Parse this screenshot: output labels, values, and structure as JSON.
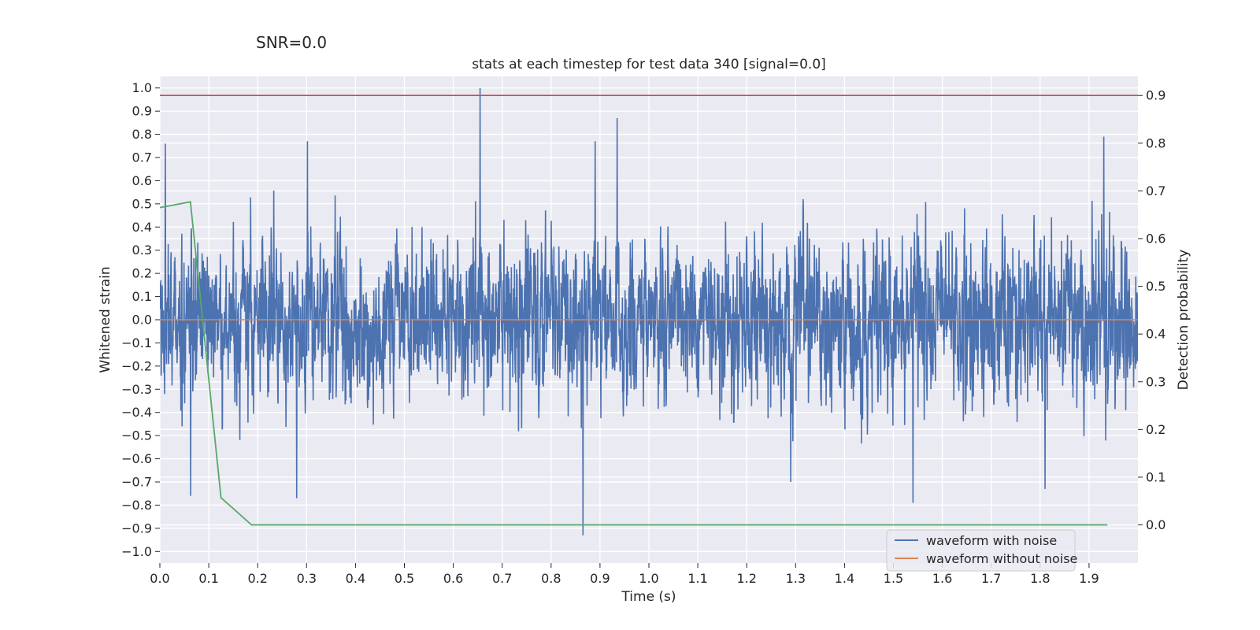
{
  "suptitle": "SNR=0.0",
  "chart_data": {
    "type": "line",
    "title": "stats at each timestep for test data 340 [signal=0.0]",
    "xlabel": "Time (s)",
    "ylabel": "Whitened strain",
    "y2label": "Detection probability",
    "xlim": [
      0.0,
      2.0
    ],
    "ylim": [
      -1.05,
      1.05
    ],
    "y2lim": [
      -0.08,
      0.94
    ],
    "xticks": [
      "0.0",
      "0.1",
      "0.2",
      "0.3",
      "0.4",
      "0.5",
      "0.6",
      "0.7",
      "0.8",
      "0.9",
      "1.0",
      "1.1",
      "1.2",
      "1.3",
      "1.4",
      "1.5",
      "1.6",
      "1.7",
      "1.8",
      "1.9"
    ],
    "yticks": [
      "1.0",
      "0.9",
      "0.8",
      "0.7",
      "0.6",
      "0.5",
      "0.4",
      "0.3",
      "0.2",
      "0.1",
      "0.0",
      "−0.1",
      "−0.2",
      "−0.3",
      "−0.4",
      "−0.5",
      "−0.6",
      "−0.7",
      "−0.8",
      "−0.9",
      "−1.0"
    ],
    "y2ticks": [
      "0.9",
      "0.8",
      "0.7",
      "0.6",
      "0.5",
      "0.4",
      "0.3",
      "0.2",
      "0.1",
      "0.0"
    ],
    "grid": true,
    "legend_position": "lower right",
    "threshold": {
      "value": 0.9,
      "axis": "right",
      "color": "#c44e52"
    },
    "series": [
      {
        "name": "waveform with noise",
        "axis": "left",
        "color": "#4c72b0",
        "sample_rate": 2048,
        "amplitude_range": [
          -0.93,
          1.0
        ],
        "peaks": [
          [
            0.011,
            0.76
          ],
          [
            0.063,
            -0.76
          ],
          [
            0.28,
            -0.77
          ],
          [
            0.302,
            0.77
          ],
          [
            0.655,
            1.0
          ],
          [
            0.865,
            -0.93
          ],
          [
            0.89,
            0.77
          ],
          [
            0.935,
            0.87
          ],
          [
            1.29,
            -0.7
          ],
          [
            1.54,
            -0.79
          ],
          [
            1.81,
            -0.73
          ],
          [
            1.93,
            0.79
          ]
        ]
      },
      {
        "name": "waveform without noise",
        "axis": "left",
        "color": "#dd8452",
        "value": 0.0
      },
      {
        "axis": "right",
        "color": "#55a868",
        "x": [
          0.0,
          0.0625,
          0.125,
          0.1875,
          0.25,
          0.5,
          1.0,
          1.5,
          1.9375
        ],
        "values": [
          0.665,
          0.677,
          0.057,
          0.0,
          0.0,
          0.0,
          0.0,
          0.0,
          0.0
        ]
      }
    ]
  }
}
